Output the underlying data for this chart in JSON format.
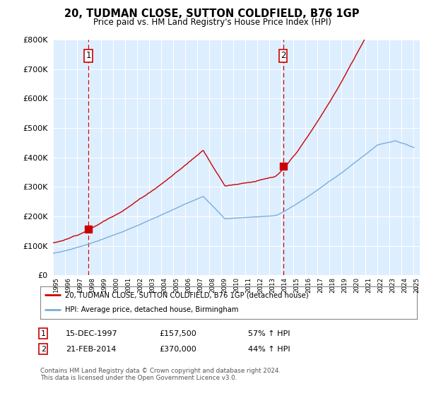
{
  "title": "20, TUDMAN CLOSE, SUTTON COLDFIELD, B76 1GP",
  "subtitle": "Price paid vs. HM Land Registry's House Price Index (HPI)",
  "legend_line1": "20, TUDMAN CLOSE, SUTTON COLDFIELD, B76 1GP (detached house)",
  "legend_line2": "HPI: Average price, detached house, Birmingham",
  "transaction1_date": "15-DEC-1997",
  "transaction1_price": "£157,500",
  "transaction1_hpi": "57% ↑ HPI",
  "transaction1_year": 1997.96,
  "transaction1_value": 157500,
  "transaction2_date": "21-FEB-2014",
  "transaction2_price": "£370,000",
  "transaction2_hpi": "44% ↑ HPI",
  "transaction2_year": 2014.13,
  "transaction2_value": 370000,
  "ylim": [
    0,
    800000
  ],
  "xlim_start": 1995.0,
  "xlim_end": 2025.5,
  "red_line_color": "#cc0000",
  "blue_line_color": "#7aaedc",
  "dashed_line_color": "#cc0000",
  "plot_bg_color": "#ddeeff",
  "footer": "Contains HM Land Registry data © Crown copyright and database right 2024.\nThis data is licensed under the Open Government Licence v3.0.",
  "background_color": "#ffffff",
  "grid_color": "#ffffff"
}
